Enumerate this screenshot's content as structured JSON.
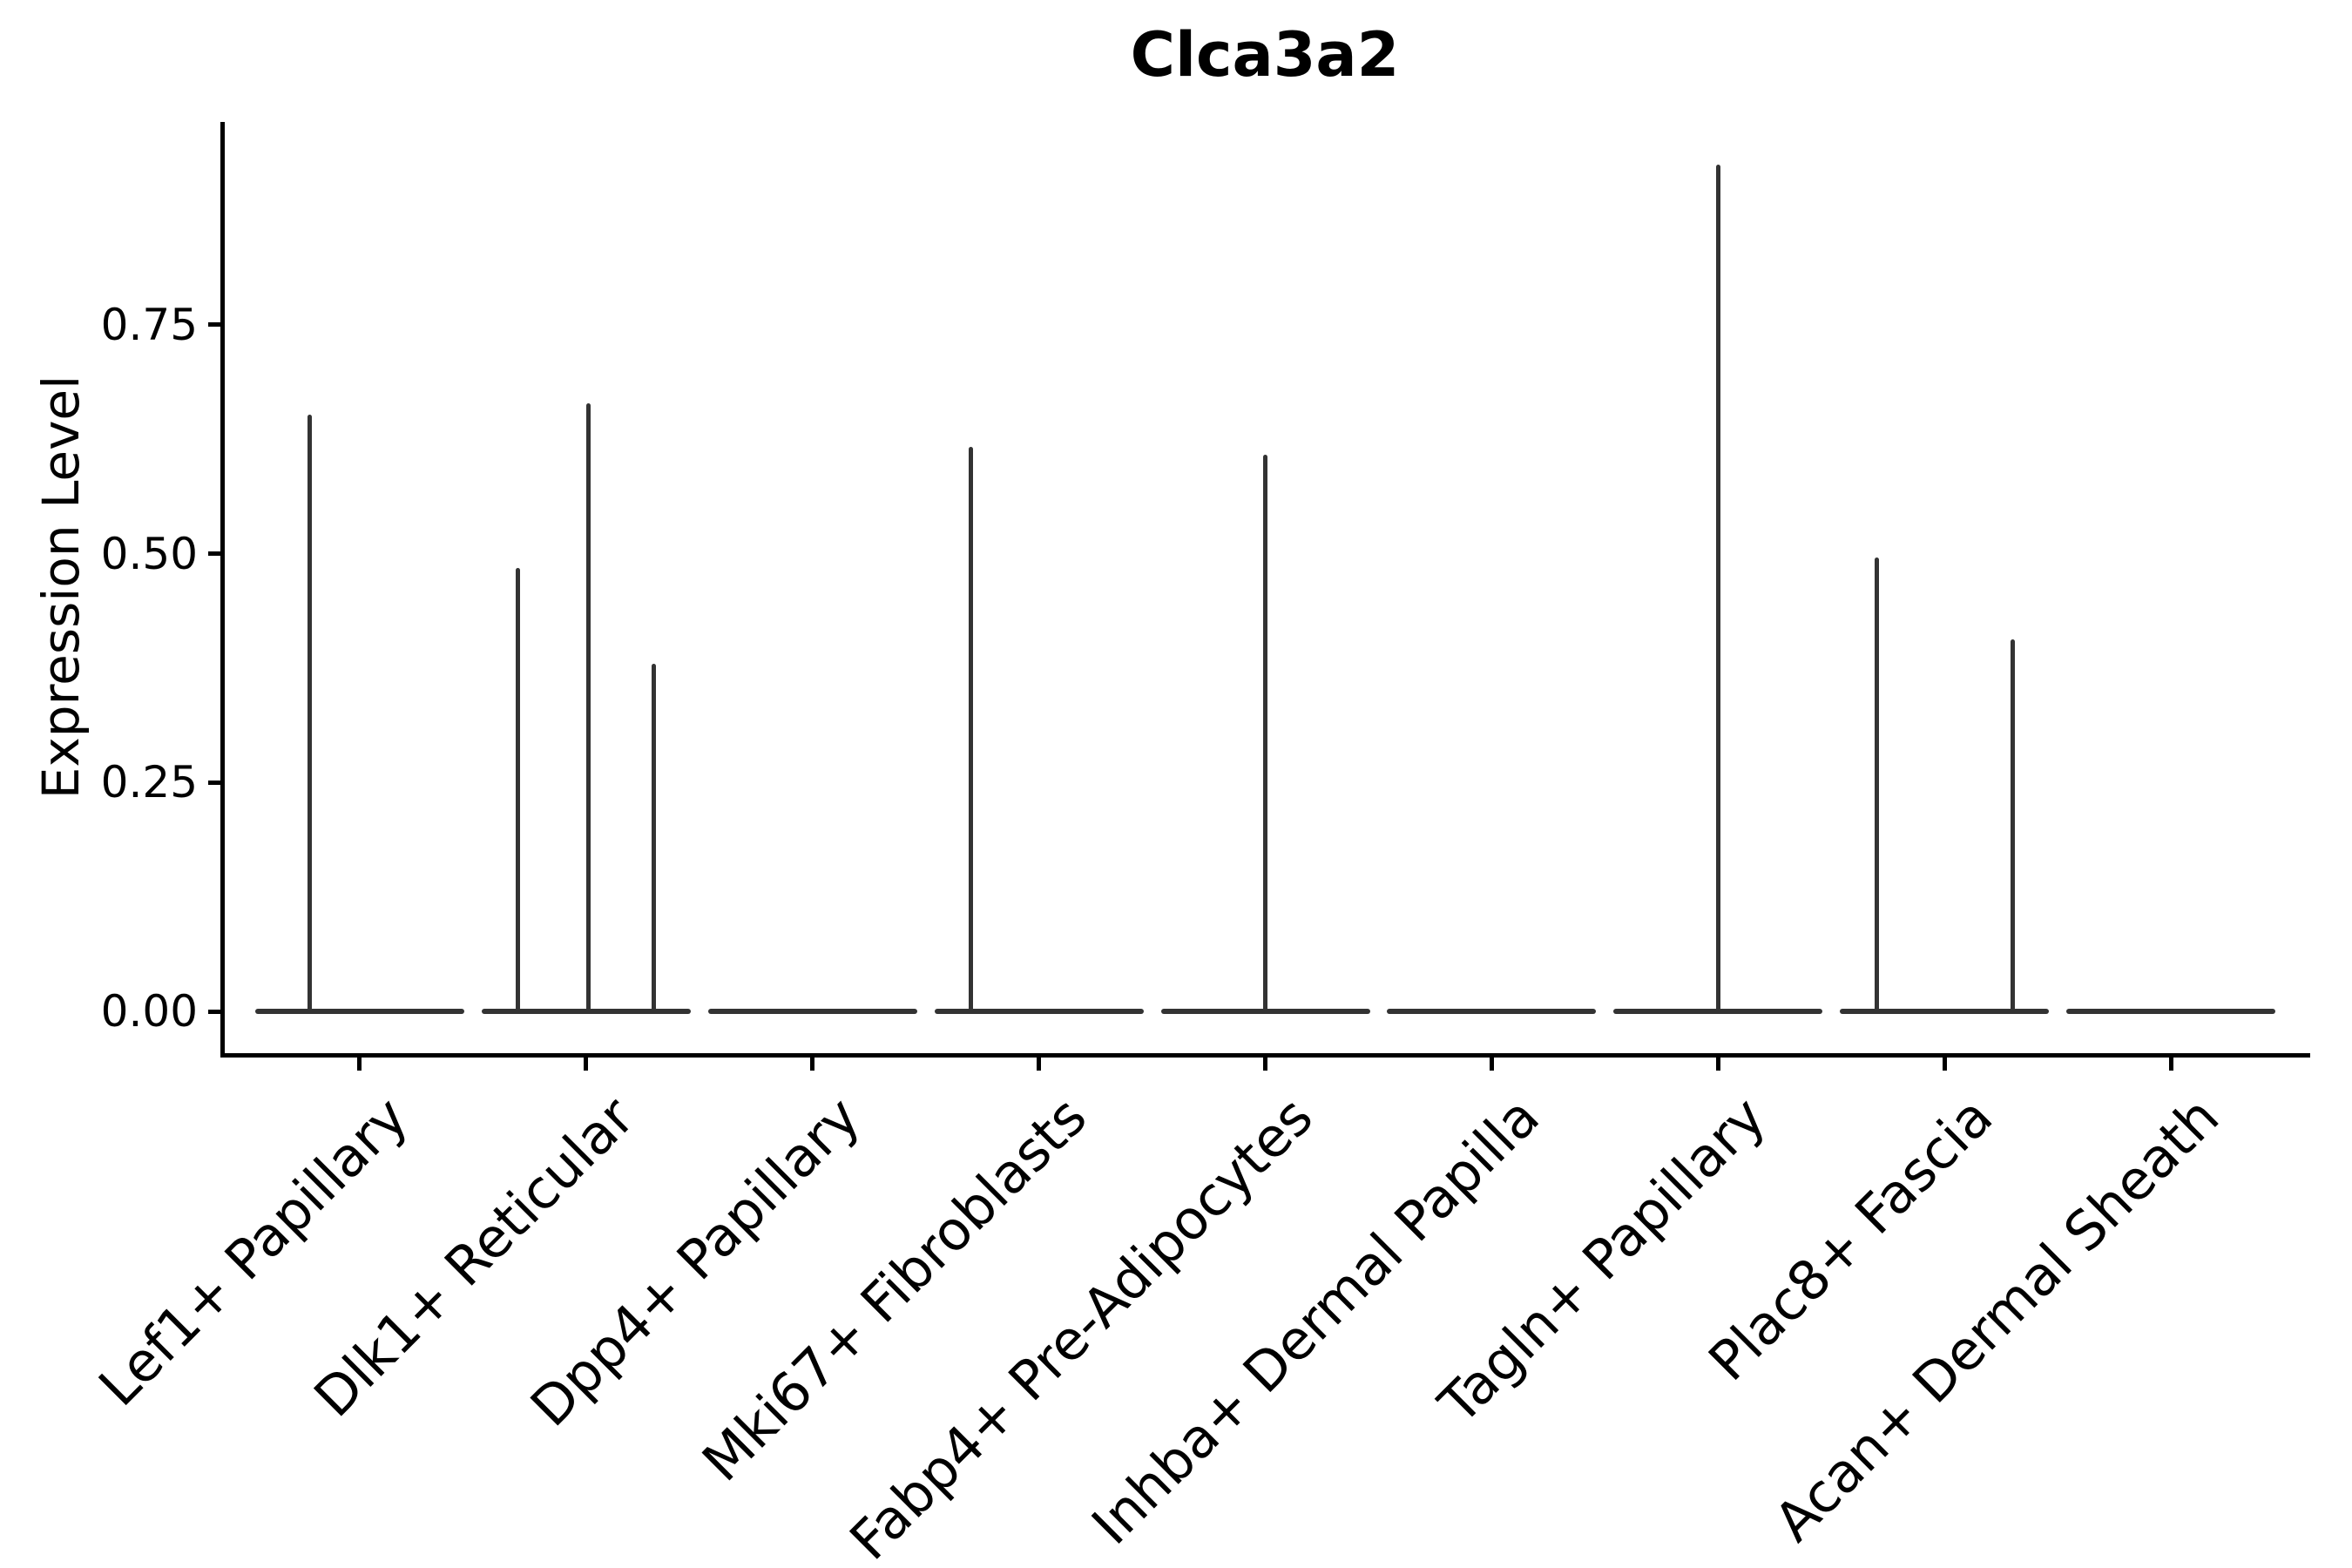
{
  "chart_data": {
    "type": "violin",
    "title": "Clca3a2",
    "ylabel": "Expression Level",
    "xlabel": "",
    "ytick_labels": [
      "0.00",
      "0.25",
      "0.50",
      "0.75"
    ],
    "ytick_values": [
      0,
      0.25,
      0.5,
      0.75
    ],
    "ylim": [
      -0.046,
      0.972
    ],
    "grid": "off",
    "legend": "none",
    "categories": [
      "Lef1+ Papillary",
      "Dlk1+ Reticular",
      "Dpp4+ Papillary",
      "Mki67+ Fibroblasts",
      "Fabp4+ Pre-Adipocytes",
      "Inhba+ Dermal Papilla",
      "Tagln+ Papillary",
      "Plac8+ Fascia",
      "Acan+ Dermal Sheath"
    ],
    "violins": [
      {
        "category": "Lef1+ Papillary",
        "baseline_value": 0,
        "spikes": [
          {
            "offset_frac": -0.22,
            "max": 0.652
          }
        ]
      },
      {
        "category": "Dlk1+ Reticular",
        "baseline_value": 0,
        "spikes": [
          {
            "offset_frac": -0.3,
            "max": 0.484
          },
          {
            "offset_frac": 0.01,
            "max": 0.664
          },
          {
            "offset_frac": 0.3,
            "max": 0.38
          }
        ]
      },
      {
        "category": "Dpp4+ Papillary",
        "baseline_value": 0,
        "spikes": []
      },
      {
        "category": "Mki67+ Fibroblasts",
        "baseline_value": 0,
        "spikes": [
          {
            "offset_frac": -0.3,
            "max": 0.617
          }
        ]
      },
      {
        "category": "Fabp4+ Pre-Adipocytes",
        "baseline_value": 0,
        "spikes": [
          {
            "offset_frac": 0.0,
            "max": 0.608
          }
        ]
      },
      {
        "category": "Inhba+ Dermal Papilla",
        "baseline_value": 0,
        "spikes": []
      },
      {
        "category": "Tagln+ Papillary",
        "baseline_value": 0,
        "spikes": [
          {
            "offset_frac": 0.0,
            "max": 0.925
          }
        ]
      },
      {
        "category": "Plac8+ Fascia",
        "baseline_value": 0,
        "spikes": [
          {
            "offset_frac": -0.3,
            "max": 0.496
          },
          {
            "offset_frac": 0.3,
            "max": 0.406
          }
        ]
      },
      {
        "category": "Acan+ Dermal Sheath",
        "baseline_value": 0,
        "spikes": []
      }
    ],
    "colors": {
      "violin_stroke": "#333333",
      "axis": "#000000",
      "text": "#000000",
      "background": "#ffffff"
    }
  }
}
